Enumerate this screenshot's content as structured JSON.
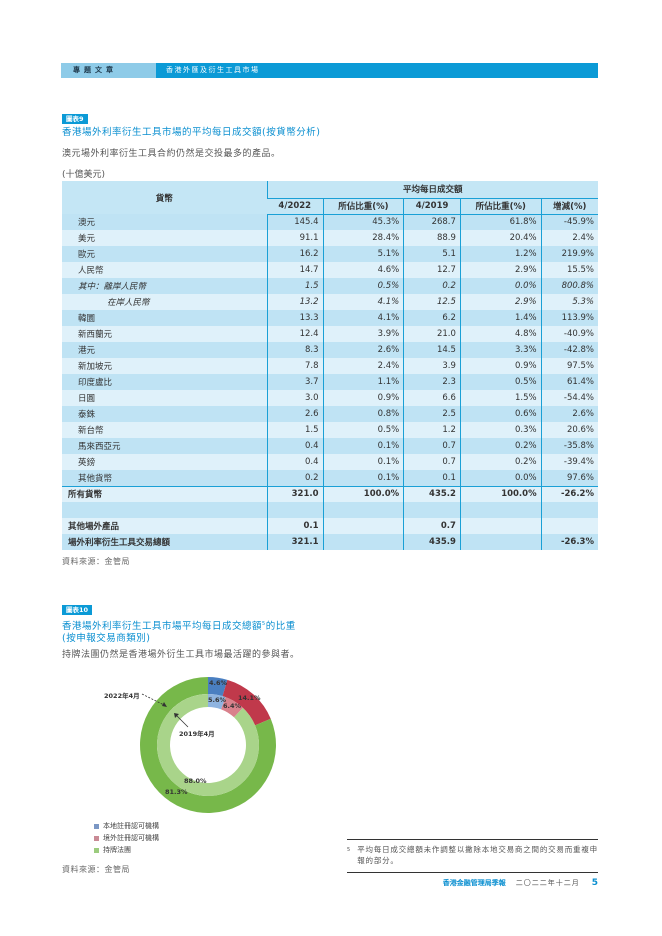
{
  "header": {
    "section_label": "專題文章",
    "article_title": "香港外匯及衍生工具市場"
  },
  "chart9": {
    "tag": "圖表9",
    "title": "香港場外利率衍生工具市場的平均每日成交額(按貨幣分析)",
    "subtitle": "澳元場外利率衍生工具合約仍然是交投最多的產品。",
    "unit": "(十億美元)",
    "table": {
      "col_currency": "貨幣",
      "group_header": "平均每日成交額",
      "columns": [
        "4/2022",
        "所佔比重(%)",
        "4/2019",
        "所佔比重(%)",
        "增減(%)"
      ],
      "rows": [
        {
          "currency": "澳元",
          "v2022": "145.4",
          "s2022": "45.3%",
          "v2019": "268.7",
          "s2019": "61.8%",
          "chg": "-45.9%"
        },
        {
          "currency": "美元",
          "v2022": "91.1",
          "s2022": "28.4%",
          "v2019": "88.9",
          "s2019": "20.4%",
          "chg": "2.4%"
        },
        {
          "currency": "歐元",
          "v2022": "16.2",
          "s2022": "5.1%",
          "v2019": "5.1",
          "s2019": "1.2%",
          "chg": "219.9%"
        },
        {
          "currency": "人民幣",
          "v2022": "14.7",
          "s2022": "4.6%",
          "v2019": "12.7",
          "s2019": "2.9%",
          "chg": "15.5%"
        },
        {
          "currency": "其中：離岸人民幣",
          "v2022": "1.5",
          "s2022": "0.5%",
          "v2019": "0.2",
          "s2019": "0.0%",
          "chg": "800.8%"
        },
        {
          "currency": "在岸人民幣",
          "v2022": "13.2",
          "s2022": "4.1%",
          "v2019": "12.5",
          "s2019": "2.9%",
          "chg": "5.3%"
        },
        {
          "currency": "韓圜",
          "v2022": "13.3",
          "s2022": "4.1%",
          "v2019": "6.2",
          "s2019": "1.4%",
          "chg": "113.9%"
        },
        {
          "currency": "新西蘭元",
          "v2022": "12.4",
          "s2022": "3.9%",
          "v2019": "21.0",
          "s2019": "4.8%",
          "chg": "-40.9%"
        },
        {
          "currency": "港元",
          "v2022": "8.3",
          "s2022": "2.6%",
          "v2019": "14.5",
          "s2019": "3.3%",
          "chg": "-42.8%"
        },
        {
          "currency": "新加坡元",
          "v2022": "7.8",
          "s2022": "2.4%",
          "v2019": "3.9",
          "s2019": "0.9%",
          "chg": "97.5%"
        },
        {
          "currency": "印度盧比",
          "v2022": "3.7",
          "s2022": "1.1%",
          "v2019": "2.3",
          "s2019": "0.5%",
          "chg": "61.4%"
        },
        {
          "currency": "日圓",
          "v2022": "3.0",
          "s2022": "0.9%",
          "v2019": "6.6",
          "s2019": "1.5%",
          "chg": "-54.4%"
        },
        {
          "currency": "泰銖",
          "v2022": "2.6",
          "s2022": "0.8%",
          "v2019": "2.5",
          "s2019": "0.6%",
          "chg": "2.6%"
        },
        {
          "currency": "新台幣",
          "v2022": "1.5",
          "s2022": "0.5%",
          "v2019": "1.2",
          "s2019": "0.3%",
          "chg": "20.6%"
        },
        {
          "currency": "馬來西亞元",
          "v2022": "0.4",
          "s2022": "0.1%",
          "v2019": "0.7",
          "s2019": "0.2%",
          "chg": "-35.8%"
        },
        {
          "currency": "英鎊",
          "v2022": "0.4",
          "s2022": "0.1%",
          "v2019": "0.7",
          "s2019": "0.2%",
          "chg": "-39.4%"
        },
        {
          "currency": "其他貨幣",
          "v2022": "0.2",
          "s2022": "0.1%",
          "v2019": "0.1",
          "s2019": "0.0%",
          "chg": "97.6%"
        }
      ],
      "total": {
        "currency": "所有貨幣",
        "v2022": "321.0",
        "s2022": "100.0%",
        "v2019": "435.2",
        "s2019": "100.0%",
        "chg": "-26.2%"
      },
      "other_products": {
        "currency": "其他場外產品",
        "v2022": "0.1",
        "s2022": "",
        "v2019": "0.7",
        "s2019": "",
        "chg": ""
      },
      "grand_total": {
        "currency": "場外利率衍生工具交易總額",
        "v2022": "321.1",
        "s2022": "",
        "v2019": "435.9",
        "s2019": "",
        "chg": "-26.3%"
      }
    },
    "source": "資料來源：金管局"
  },
  "chart10": {
    "tag": "圖表10",
    "title_line1": "香港場外利率衍生工具市場平均每日成交總額",
    "footnote_ref": "5",
    "title_line1_suffix": "的比重",
    "title_line2": "(按申報交易商類別)",
    "subtitle": "持牌法團仍然是香港場外衍生工具市場最活躍的參與者。",
    "outer_label": "2022年4月",
    "inner_label": "2019年4月",
    "source": "資料來源：金管局"
  },
  "chart_data": {
    "type": "pie",
    "title": "香港場外利率衍生工具市場平均每日成交總額的比重(按申報交易商類別)",
    "categories": [
      "本地註冊認可機構",
      "境外註冊認可機構",
      "持牌法團"
    ],
    "series": [
      {
        "name": "2022年4月",
        "ring": "outer",
        "values": [
          4.6,
          14.1,
          81.3
        ]
      },
      {
        "name": "2019年4月",
        "ring": "inner",
        "values": [
          5.6,
          6.4,
          88.0
        ]
      }
    ],
    "colors": {
      "outer": [
        "#4a7fc1",
        "#c0394b",
        "#77b84a"
      ],
      "inner": [
        "#8fb4e0",
        "#d9818c",
        "#a9d48a"
      ]
    },
    "labels": {
      "outer": [
        "4.6%",
        "14.1%",
        "81.3%"
      ],
      "inner": [
        "5.6%",
        "6.4%",
        "88.0%"
      ]
    },
    "legend_position": "bottom-left"
  },
  "legend": [
    {
      "label": "本地註冊認可機構",
      "color": "#7b97c4"
    },
    {
      "label": "境外註冊認可機構",
      "color": "#c98a95"
    },
    {
      "label": "持牌法團",
      "color": "#9ccc7e"
    }
  ],
  "footnote": {
    "mark": "5",
    "text": "平均每日成交總額未作調整以撇除本地交易商之間的交易而重複申報的部分。"
  },
  "footer": {
    "publication": "香港金融管理局季報",
    "date": "二〇二二年十二月",
    "page": "5"
  }
}
